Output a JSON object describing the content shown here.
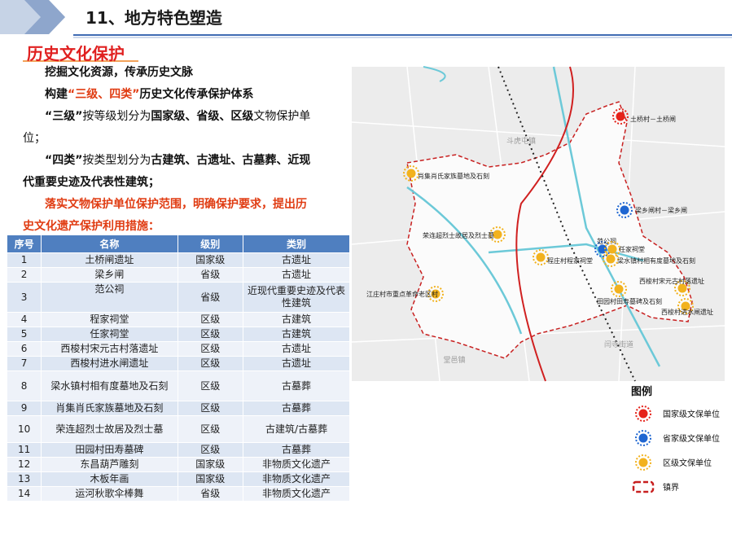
{
  "header": {
    "title": "11、地方特色塑造"
  },
  "section": {
    "title": "历史文化保护",
    "paragraphs": [
      [
        "挖掘文化资源，传承历史文脉"
      ],
      [
        "构建",
        "“三级、四类”",
        "历史文化传承保护体系"
      ],
      [
        "“三级”",
        "按等级划分为",
        "国家级、省级、区级",
        "文物保护单位；"
      ],
      [
        "“四类”",
        "按类型划分为",
        "古建筑、古遗址、古墓葬、近现代重要史迹及代表性建筑；"
      ],
      [
        "落实文物保护单位保护范围，明确保护要求，提出历史文化遗产保护利用措施："
      ]
    ]
  },
  "table": {
    "header": [
      "序号",
      "名称",
      "级别",
      "类别"
    ],
    "rows": [
      [
        1,
        "土桥闸遗址",
        "国家级",
        "古遗址"
      ],
      [
        2,
        "梁乡闸",
        "省级",
        "古遗址"
      ],
      [
        3,
        "范公祠",
        "省级",
        "近现代重要史迹及代表性建筑"
      ],
      [
        4,
        "程家祠堂",
        "区级",
        "古建筑"
      ],
      [
        5,
        "任家祠堂",
        "区级",
        "古建筑"
      ],
      [
        6,
        "西梭村宋元古村落遗址",
        "区级",
        "古遗址"
      ],
      [
        7,
        "西梭村进水闸遗址",
        "区级",
        "古遗址"
      ],
      [
        8,
        "梁水镇村相有度墓地及石刻",
        "区级",
        "古墓葬"
      ],
      [
        9,
        "肖集肖氏家族墓地及石刻",
        "区级",
        "古墓葬"
      ],
      [
        10,
        "荣连超烈士故居及烈士墓",
        "区级",
        "古建筑/古墓葬"
      ],
      [
        11,
        "田园村田寿墓碑",
        "区级",
        "古墓葬"
      ],
      [
        12,
        "东昌葫芦雕刻",
        "国家级",
        "非物质文化遗产"
      ],
      [
        13,
        "木板年画",
        "国家级",
        "非物质文化遗产"
      ],
      [
        14,
        "运河秋歌伞棒舞",
        "省级",
        "非物质文化遗产"
      ]
    ]
  },
  "map": {
    "places": [
      "斗虎屯镇",
      "堂邑镇",
      "闫寺街道"
    ],
    "national": [
      "土桥村－土桥闸"
    ],
    "provincial": [
      "梁乡闸村－梁乡闸",
      "范公祠"
    ],
    "district": [
      "肖集肖氏家族墓地及石刻",
      "荣连超烈士故居及烈士墓",
      "任家祠堂",
      "程庄村程家祠堂",
      "梁水镇村相有度墓地及石刻",
      "江庄村市重点革命老区村",
      "西梭村宋元古村落遗址",
      "田园村田寿墓碑及石刻",
      "西梭村进水闸遗址"
    ]
  },
  "legend": {
    "title": "图例",
    "items": [
      "国家级文保单位",
      "省家级文保单位",
      "区级文保单位",
      "镇界"
    ]
  }
}
